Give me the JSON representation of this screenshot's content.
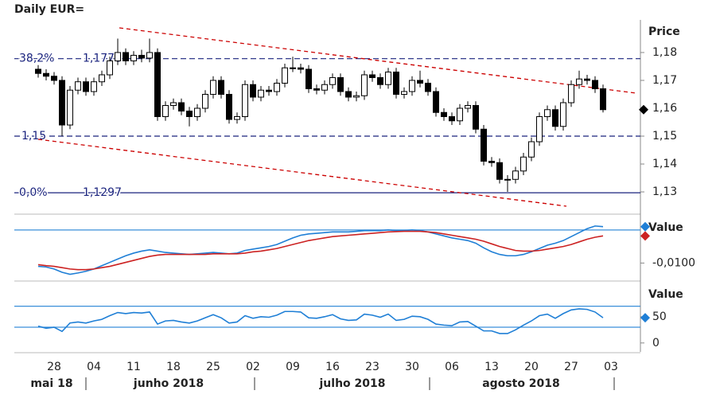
{
  "chart_data": [
    {
      "type": "candlestick",
      "title": "Daily EUR=",
      "y_axis_title": "Price",
      "categories": [
        null,
        null,
        "28",
        null,
        null,
        null,
        null,
        "04",
        null,
        null,
        null,
        null,
        "11",
        null,
        null,
        null,
        null,
        "18",
        null,
        null,
        null,
        null,
        "25",
        null,
        null,
        null,
        null,
        "02",
        null,
        null,
        null,
        null,
        "09",
        null,
        null,
        null,
        null,
        "16",
        null,
        null,
        null,
        null,
        "23",
        null,
        null,
        null,
        null,
        "30",
        null,
        null,
        null,
        null,
        "06",
        null,
        null,
        null,
        null,
        "13",
        null,
        null,
        null,
        null,
        "20",
        null,
        null,
        null,
        null,
        "27",
        null,
        null,
        null,
        null,
        "03"
      ],
      "month_labels": [
        "mai 18",
        "junho 2018",
        "julho 2018",
        "agosto 2018"
      ],
      "open": [
        1.174,
        1.1725,
        1.1715,
        1.17,
        1.154,
        1.1665,
        1.1695,
        1.166,
        1.1695,
        1.172,
        1.177,
        1.18,
        1.177,
        1.179,
        1.178,
        1.18,
        1.157,
        1.161,
        1.162,
        1.159,
        1.157,
        1.16,
        1.165,
        1.17,
        1.165,
        1.156,
        1.157,
        1.1685,
        1.164,
        1.1665,
        1.166,
        1.169,
        1.1745,
        1.1745,
        1.174,
        1.167,
        1.1665,
        1.1685,
        1.171,
        1.166,
        1.164,
        1.1645,
        1.172,
        1.171,
        1.1685,
        1.173,
        1.165,
        1.166,
        1.17,
        1.169,
        1.166,
        1.1585,
        1.157,
        1.1555,
        1.16,
        1.161,
        1.1525,
        1.141,
        1.1405,
        1.1345,
        1.1345,
        1.1375,
        1.1425,
        1.148,
        1.157,
        1.1595,
        1.1535,
        1.162,
        1.1685,
        1.1705,
        1.17,
        1.167,
        null
      ],
      "high": [
        1.1755,
        1.174,
        1.173,
        1.1715,
        1.168,
        1.171,
        1.171,
        1.171,
        1.1735,
        1.1785,
        1.185,
        1.1815,
        1.1805,
        1.181,
        1.185,
        1.1815,
        1.1625,
        1.1635,
        1.1635,
        1.1605,
        1.1615,
        1.1665,
        1.1715,
        1.1715,
        1.1665,
        1.1585,
        1.17,
        1.17,
        1.168,
        1.168,
        1.1705,
        1.176,
        1.1785,
        1.176,
        1.1755,
        1.1685,
        1.17,
        1.1725,
        1.1725,
        1.1675,
        1.166,
        1.1735,
        1.1735,
        1.1725,
        1.1745,
        1.1745,
        1.1675,
        1.1715,
        1.1735,
        1.1705,
        1.1675,
        1.16,
        1.1585,
        1.1615,
        1.1625,
        1.1625,
        1.154,
        1.1425,
        1.142,
        1.136,
        1.139,
        1.144,
        1.1495,
        1.1585,
        1.161,
        1.161,
        1.1635,
        1.17,
        1.1735,
        1.172,
        1.1715,
        1.1685,
        null
      ],
      "low": [
        1.171,
        1.17,
        1.1685,
        1.15,
        1.1525,
        1.165,
        1.1645,
        1.1645,
        1.168,
        1.1705,
        1.1755,
        1.1755,
        1.1755,
        1.1765,
        1.1765,
        1.1555,
        1.1555,
        1.1595,
        1.1575,
        1.1535,
        1.1555,
        1.1585,
        1.1635,
        1.1635,
        1.1545,
        1.1545,
        1.1555,
        1.1625,
        1.1625,
        1.1645,
        1.1645,
        1.1675,
        1.173,
        1.1725,
        1.1655,
        1.165,
        1.165,
        1.167,
        1.1645,
        1.1625,
        1.1625,
        1.163,
        1.1695,
        1.167,
        1.167,
        1.1635,
        1.1635,
        1.1645,
        1.1675,
        1.1645,
        1.157,
        1.1555,
        1.154,
        1.154,
        1.1585,
        1.151,
        1.1395,
        1.139,
        1.133,
        1.13,
        1.133,
        1.136,
        1.141,
        1.1465,
        1.1555,
        1.152,
        1.152,
        1.1605,
        1.167,
        1.1685,
        1.1655,
        1.1585,
        null
      ],
      "close": [
        1.1725,
        1.1715,
        1.17,
        1.154,
        1.1665,
        1.1695,
        1.166,
        1.1695,
        1.172,
        1.177,
        1.18,
        1.177,
        1.179,
        1.178,
        1.18,
        1.157,
        1.161,
        1.162,
        1.159,
        1.157,
        1.16,
        1.165,
        1.17,
        1.165,
        1.156,
        1.157,
        1.1685,
        1.164,
        1.1665,
        1.166,
        1.169,
        1.1745,
        1.1745,
        1.174,
        1.167,
        1.1665,
        1.1685,
        1.171,
        1.166,
        1.164,
        1.1645,
        1.172,
        1.171,
        1.1685,
        1.173,
        1.165,
        1.166,
        1.17,
        1.169,
        1.166,
        1.1585,
        1.157,
        1.1555,
        1.16,
        1.161,
        1.1525,
        1.141,
        1.1405,
        1.1345,
        1.1345,
        1.1375,
        1.1425,
        1.148,
        1.157,
        1.1595,
        1.1535,
        1.162,
        1.1685,
        1.1705,
        1.17,
        1.167,
        1.1595,
        null
      ],
      "ylim": [
        1.1223,
        1.1917
      ],
      "yticks": [
        {
          "value": 1.13,
          "label": "1,13"
        },
        {
          "value": 1.14,
          "label": "1,14"
        },
        {
          "value": 1.15,
          "label": "1,15"
        },
        {
          "value": 1.16,
          "label": "1,16"
        },
        {
          "value": 1.17,
          "label": "1,17"
        },
        {
          "value": 1.18,
          "label": "1,18"
        }
      ],
      "levels": [
        {
          "label": "38,2%",
          "value": 1.1778,
          "value_label": "1,1778",
          "style": "dashed"
        },
        {
          "value": 1.15,
          "value_label": "1,15",
          "style": "dashed"
        },
        {
          "label": "0,0%",
          "value": 1.1297,
          "value_label": "1,1297",
          "style": "solid"
        }
      ]
    },
    {
      "type": "line",
      "y_axis_title": "Value",
      "series": [
        {
          "color": "#1f7fd6",
          "values": [
            -0.011,
            -0.0112,
            -0.0118,
            -0.0128,
            -0.0134,
            -0.013,
            -0.0125,
            -0.0118,
            -0.0108,
            -0.0098,
            -0.0088,
            -0.0078,
            -0.007,
            -0.0064,
            -0.006,
            -0.0064,
            -0.0068,
            -0.007,
            -0.0072,
            -0.0074,
            -0.0072,
            -0.007,
            -0.0068,
            -0.007,
            -0.0072,
            -0.007,
            -0.0062,
            -0.0058,
            -0.0054,
            -0.005,
            -0.0044,
            -0.0034,
            -0.0024,
            -0.0016,
            -0.0012,
            -0.001,
            -0.0008,
            -0.0006,
            -0.0006,
            -0.0006,
            -0.0004,
            -0.0002,
            -0.0002,
            -0.0002,
            0.0,
            -0.0002,
            -0.0002,
            0.0,
            -0.0002,
            -0.0006,
            -0.0012,
            -0.0018,
            -0.0024,
            -0.0028,
            -0.0032,
            -0.004,
            -0.0054,
            -0.0066,
            -0.0074,
            -0.0078,
            -0.0078,
            -0.0074,
            -0.0066,
            -0.0056,
            -0.0046,
            -0.004,
            -0.0032,
            -0.002,
            -0.0008,
            0.0004,
            0.0012,
            0.001
          ]
        },
        {
          "color": "#cc2222",
          "values": [
            -0.0105,
            -0.0108,
            -0.011,
            -0.0114,
            -0.0118,
            -0.012,
            -0.012,
            -0.0118,
            -0.0114,
            -0.011,
            -0.0104,
            -0.0098,
            -0.0092,
            -0.0086,
            -0.008,
            -0.0076,
            -0.0074,
            -0.0074,
            -0.0074,
            -0.0074,
            -0.0074,
            -0.0074,
            -0.0072,
            -0.0072,
            -0.0072,
            -0.0072,
            -0.007,
            -0.0066,
            -0.0064,
            -0.006,
            -0.0056,
            -0.005,
            -0.0044,
            -0.0038,
            -0.0032,
            -0.0028,
            -0.0024,
            -0.002,
            -0.0018,
            -0.0016,
            -0.0014,
            -0.0012,
            -0.001,
            -0.0008,
            -0.0006,
            -0.0005,
            -0.0004,
            -0.0004,
            -0.0004,
            -0.0006,
            -0.0008,
            -0.0012,
            -0.0016,
            -0.002,
            -0.0024,
            -0.0028,
            -0.0034,
            -0.0042,
            -0.005,
            -0.0056,
            -0.0062,
            -0.0064,
            -0.0064,
            -0.0062,
            -0.0058,
            -0.0054,
            -0.005,
            -0.0044,
            -0.0036,
            -0.0028,
            -0.0022,
            -0.0018
          ]
        }
      ],
      "ylim": [
        -0.0152,
        0.0043
      ],
      "yticks": [
        {
          "value": -0.01,
          "label": "-0,0100"
        }
      ],
      "levels": [
        0
      ]
    },
    {
      "type": "line",
      "y_axis_title": "Value",
      "series": [
        {
          "color": "#1f7fd6",
          "values": [
            32,
            28,
            30,
            22,
            38,
            40,
            38,
            42,
            45,
            52,
            58,
            56,
            58,
            57,
            59,
            36,
            42,
            43,
            40,
            38,
            42,
            48,
            54,
            48,
            38,
            40,
            52,
            47,
            50,
            49,
            53,
            60,
            60,
            59,
            48,
            47,
            50,
            54,
            46,
            43,
            44,
            55,
            53,
            49,
            55,
            43,
            45,
            51,
            50,
            45,
            36,
            34,
            33,
            40,
            41,
            32,
            23,
            23,
            18,
            18,
            25,
            34,
            42,
            52,
            55,
            47,
            56,
            63,
            65,
            64,
            59,
            48
          ]
        }
      ],
      "ylim": [
        -17,
        115
      ],
      "yticks": [
        0,
        50
      ],
      "levels": [
        30,
        70
      ]
    }
  ]
}
